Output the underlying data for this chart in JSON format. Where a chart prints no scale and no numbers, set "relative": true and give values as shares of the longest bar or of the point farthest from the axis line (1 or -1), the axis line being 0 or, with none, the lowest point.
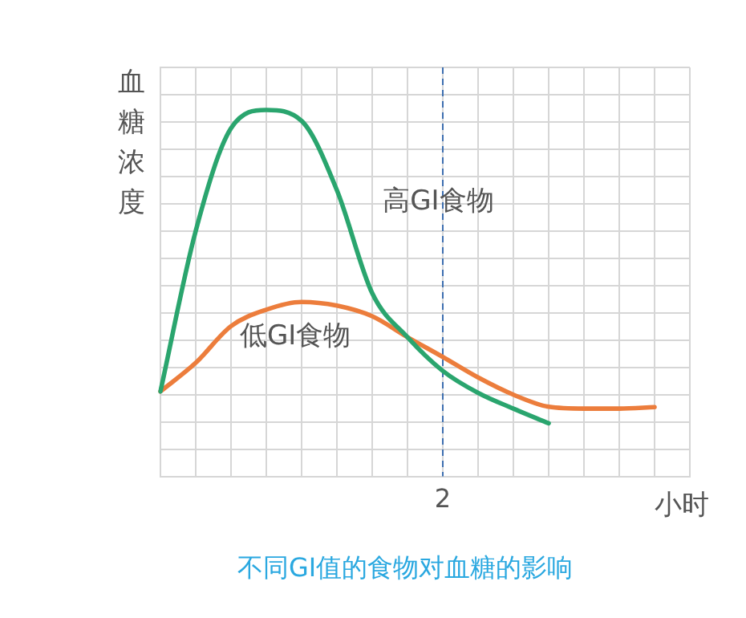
{
  "chart_data": {
    "type": "line",
    "title": "不同GI值的食物对血糖的影响",
    "xlabel": "小时",
    "ylabel": "血糖浓度",
    "relative": true,
    "categories": [
      null,
      null,
      null,
      null,
      null,
      null,
      null,
      null,
      null,
      null,
      null,
      null,
      null,
      null,
      null,
      null
    ],
    "annotations": [
      "2"
    ],
    "grid": true,
    "legend": false,
    "marker": "none",
    "line_style": "solid",
    "series": [
      {
        "name": "高GI食物",
        "color": "#2aa56e",
        "values": [
          0.232,
          0.67,
          0.95,
          1,
          0.97,
          0.781,
          0.5,
          0.38,
          0.288,
          0.228,
          0.185,
          0.145,
          null,
          null,
          null,
          null
        ]
      },
      {
        "name": "低GI食物",
        "color": "#ec7d3c",
        "values": [
          0.232,
          0.31,
          0.41,
          0.455,
          0.476,
          0.466,
          0.437,
          0.38,
          0.326,
          0.27,
          0.223,
          0.19,
          0.185,
          0.185,
          0.189,
          null
        ]
      }
    ]
  }
}
